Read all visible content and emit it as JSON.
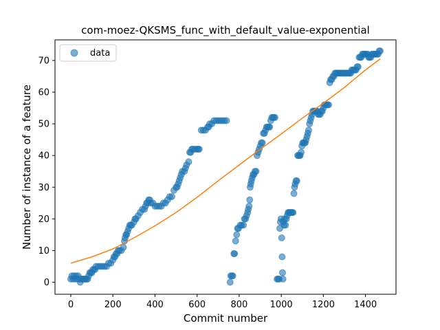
{
  "chart_data": {
    "type": "scatter",
    "title": "com-moez-QKSMS_func_with_default_value-exponential",
    "xlabel": "Commit number",
    "ylabel": "Number of instance of a feature",
    "xlim": [
      -75,
      1545
    ],
    "ylim": [
      -3.8,
      76.5
    ],
    "xticks": [
      0,
      200,
      400,
      600,
      800,
      1000,
      1200,
      1400
    ],
    "yticks": [
      0,
      10,
      20,
      30,
      40,
      50,
      60,
      70
    ],
    "grid": false,
    "legend_position": "upper-left",
    "colors": {
      "data": "#1f77b4",
      "fit": "#ff7f0e"
    },
    "series": [
      {
        "name": "data",
        "style": "markers",
        "points": [
          [
            0,
            1
          ],
          [
            5,
            2
          ],
          [
            10,
            1
          ],
          [
            15,
            2
          ],
          [
            20,
            1
          ],
          [
            25,
            2
          ],
          [
            30,
            1
          ],
          [
            35,
            2
          ],
          [
            40,
            1
          ],
          [
            45,
            0
          ],
          [
            50,
            1
          ],
          [
            55,
            1
          ],
          [
            60,
            1
          ],
          [
            65,
            1
          ],
          [
            70,
            1
          ],
          [
            75,
            1
          ],
          [
            80,
            1
          ],
          [
            85,
            2
          ],
          [
            90,
            3
          ],
          [
            95,
            3
          ],
          [
            100,
            3
          ],
          [
            105,
            4
          ],
          [
            110,
            4
          ],
          [
            115,
            4
          ],
          [
            120,
            5
          ],
          [
            130,
            5
          ],
          [
            140,
            5
          ],
          [
            150,
            5
          ],
          [
            160,
            5
          ],
          [
            170,
            5
          ],
          [
            180,
            6
          ],
          [
            190,
            6
          ],
          [
            200,
            7
          ],
          [
            205,
            8
          ],
          [
            210,
            8
          ],
          [
            215,
            9
          ],
          [
            220,
            9
          ],
          [
            225,
            10
          ],
          [
            230,
            10
          ],
          [
            240,
            10
          ],
          [
            250,
            11
          ],
          [
            255,
            13
          ],
          [
            258,
            14
          ],
          [
            262,
            15
          ],
          [
            265,
            15
          ],
          [
            270,
            16
          ],
          [
            275,
            17
          ],
          [
            280,
            18
          ],
          [
            285,
            18
          ],
          [
            290,
            18
          ],
          [
            300,
            19
          ],
          [
            305,
            20
          ],
          [
            310,
            20
          ],
          [
            320,
            21
          ],
          [
            330,
            22
          ],
          [
            340,
            23
          ],
          [
            350,
            23
          ],
          [
            355,
            24
          ],
          [
            360,
            25
          ],
          [
            365,
            25
          ],
          [
            370,
            26
          ],
          [
            375,
            26
          ],
          [
            380,
            25
          ],
          [
            390,
            25
          ],
          [
            400,
            24
          ],
          [
            410,
            24
          ],
          [
            420,
            24
          ],
          [
            430,
            24
          ],
          [
            440,
            25
          ],
          [
            450,
            25
          ],
          [
            460,
            26
          ],
          [
            470,
            27
          ],
          [
            480,
            27
          ],
          [
            490,
            29
          ],
          [
            500,
            30
          ],
          [
            505,
            30
          ],
          [
            510,
            31
          ],
          [
            515,
            32
          ],
          [
            520,
            33
          ],
          [
            525,
            34
          ],
          [
            530,
            35
          ],
          [
            540,
            35
          ],
          [
            545,
            36
          ],
          [
            550,
            37
          ],
          [
            560,
            38
          ],
          [
            565,
            41
          ],
          [
            570,
            41
          ],
          [
            575,
            42
          ],
          [
            580,
            42
          ],
          [
            590,
            42
          ],
          [
            600,
            42
          ],
          [
            605,
            42
          ],
          [
            610,
            42
          ],
          [
            620,
            48
          ],
          [
            630,
            48
          ],
          [
            640,
            48
          ],
          [
            650,
            49
          ],
          [
            655,
            49
          ],
          [
            660,
            50
          ],
          [
            670,
            50
          ],
          [
            680,
            51
          ],
          [
            690,
            51
          ],
          [
            700,
            51
          ],
          [
            710,
            51
          ],
          [
            720,
            51
          ],
          [
            730,
            51
          ],
          [
            740,
            51
          ],
          [
            757,
            0
          ],
          [
            760,
            2
          ],
          [
            765,
            2
          ],
          [
            770,
            2
          ],
          [
            775,
            9
          ],
          [
            778,
            9
          ],
          [
            783,
            13
          ],
          [
            788,
            15
          ],
          [
            792,
            17
          ],
          [
            797,
            17
          ],
          [
            805,
            18
          ],
          [
            812,
            18
          ],
          [
            820,
            18
          ],
          [
            825,
            20
          ],
          [
            830,
            20
          ],
          [
            835,
            21
          ],
          [
            840,
            22
          ],
          [
            843,
            23
          ],
          [
            847,
            24
          ],
          [
            850,
            26
          ],
          [
            852,
            30
          ],
          [
            855,
            31
          ],
          [
            858,
            32
          ],
          [
            862,
            33
          ],
          [
            866,
            34
          ],
          [
            870,
            34
          ],
          [
            875,
            35
          ],
          [
            880,
            35
          ],
          [
            885,
            40
          ],
          [
            890,
            41
          ],
          [
            895,
            42
          ],
          [
            900,
            43
          ],
          [
            905,
            44
          ],
          [
            910,
            44
          ],
          [
            915,
            47
          ],
          [
            920,
            47
          ],
          [
            925,
            48
          ],
          [
            930,
            49
          ],
          [
            935,
            49
          ],
          [
            940,
            49
          ],
          [
            945,
            49
          ],
          [
            950,
            51
          ],
          [
            955,
            52
          ],
          [
            960,
            52
          ],
          [
            965,
            52
          ],
          [
            970,
            52
          ],
          [
            980,
            1
          ],
          [
            985,
            1
          ],
          [
            990,
            1
          ],
          [
            993,
            17
          ],
          [
            996,
            19
          ],
          [
            999,
            20
          ],
          [
            1002,
            14
          ],
          [
            1004,
            8
          ],
          [
            1006,
            3
          ],
          [
            1008,
            1
          ],
          [
            1010,
            19
          ],
          [
            1013,
            18
          ],
          [
            1016,
            20
          ],
          [
            1020,
            18
          ],
          [
            1024,
            20
          ],
          [
            1028,
            21
          ],
          [
            1032,
            22
          ],
          [
            1036,
            22
          ],
          [
            1040,
            22
          ],
          [
            1044,
            22
          ],
          [
            1048,
            22
          ],
          [
            1052,
            22
          ],
          [
            1056,
            22
          ],
          [
            1060,
            28
          ],
          [
            1063,
            30
          ],
          [
            1066,
            31
          ],
          [
            1070,
            32
          ],
          [
            1074,
            32
          ],
          [
            1078,
            40
          ],
          [
            1082,
            40
          ],
          [
            1086,
            40
          ],
          [
            1090,
            40
          ],
          [
            1094,
            41
          ],
          [
            1098,
            43
          ],
          [
            1102,
            44
          ],
          [
            1106,
            44
          ],
          [
            1110,
            44
          ],
          [
            1114,
            44
          ],
          [
            1118,
            45
          ],
          [
            1122,
            46
          ],
          [
            1126,
            47
          ],
          [
            1130,
            48
          ],
          [
            1134,
            50
          ],
          [
            1138,
            51
          ],
          [
            1142,
            52
          ],
          [
            1146,
            53
          ],
          [
            1150,
            54
          ],
          [
            1155,
            54
          ],
          [
            1160,
            54
          ],
          [
            1165,
            54
          ],
          [
            1170,
            54
          ],
          [
            1175,
            53
          ],
          [
            1180,
            53
          ],
          [
            1185,
            53
          ],
          [
            1190,
            54
          ],
          [
            1195,
            54
          ],
          [
            1200,
            55
          ],
          [
            1205,
            56
          ],
          [
            1210,
            56
          ],
          [
            1215,
            56
          ],
          [
            1220,
            56
          ],
          [
            1225,
            56
          ],
          [
            1230,
            63
          ],
          [
            1235,
            64
          ],
          [
            1240,
            64
          ],
          [
            1245,
            65
          ],
          [
            1250,
            65
          ],
          [
            1255,
            66
          ],
          [
            1260,
            66
          ],
          [
            1265,
            66
          ],
          [
            1270,
            66
          ],
          [
            1275,
            66
          ],
          [
            1280,
            66
          ],
          [
            1285,
            66
          ],
          [
            1290,
            66
          ],
          [
            1295,
            66
          ],
          [
            1300,
            66
          ],
          [
            1305,
            66
          ],
          [
            1310,
            66
          ],
          [
            1315,
            66
          ],
          [
            1320,
            66
          ],
          [
            1325,
            66
          ],
          [
            1330,
            66
          ],
          [
            1335,
            67
          ],
          [
            1340,
            67
          ],
          [
            1345,
            67
          ],
          [
            1350,
            67
          ],
          [
            1355,
            67
          ],
          [
            1360,
            68
          ],
          [
            1365,
            68
          ],
          [
            1370,
            71
          ],
          [
            1375,
            71
          ],
          [
            1380,
            71
          ],
          [
            1385,
            72
          ],
          [
            1390,
            72
          ],
          [
            1395,
            72
          ],
          [
            1400,
            72
          ],
          [
            1405,
            72
          ],
          [
            1410,
            72
          ],
          [
            1415,
            71
          ],
          [
            1420,
            71
          ],
          [
            1425,
            71
          ],
          [
            1430,
            72
          ],
          [
            1435,
            72
          ],
          [
            1440,
            72
          ],
          [
            1445,
            72
          ],
          [
            1450,
            72
          ],
          [
            1455,
            72
          ],
          [
            1460,
            72
          ],
          [
            1465,
            73
          ],
          [
            1470,
            73
          ]
        ]
      },
      {
        "style": "line",
        "points": [
          [
            0,
            6.0
          ],
          [
            100,
            8.0
          ],
          [
            200,
            10.5
          ],
          [
            300,
            14.0
          ],
          [
            400,
            17.8
          ],
          [
            500,
            22.0
          ],
          [
            600,
            26.8
          ],
          [
            700,
            32.0
          ],
          [
            800,
            37.0
          ],
          [
            900,
            42.0
          ],
          [
            1000,
            46.8
          ],
          [
            1100,
            51.8
          ],
          [
            1200,
            56.5
          ],
          [
            1300,
            61.5
          ],
          [
            1400,
            67.0
          ],
          [
            1470,
            70.5
          ]
        ]
      }
    ]
  }
}
